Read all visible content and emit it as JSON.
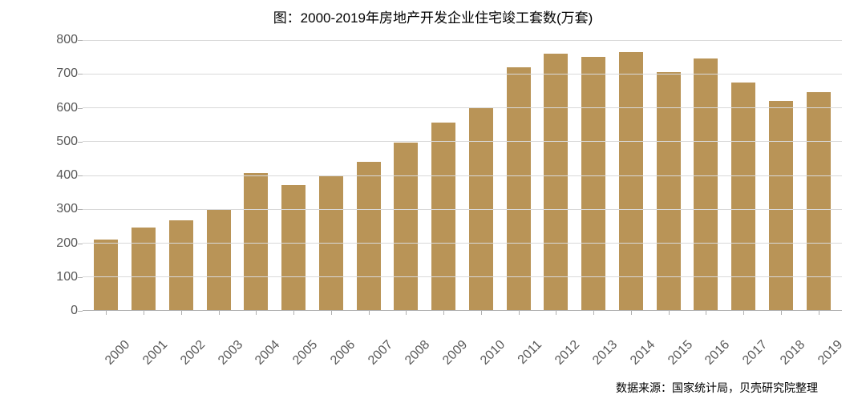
{
  "chart": {
    "type": "bar",
    "title": "图：2000-2019年房地产开发企业住宅竣工套数(万套)",
    "title_fontsize": 17,
    "title_color": "#000000",
    "background_color": "#ffffff",
    "bar_color": "#b99457",
    "grid_color": "#d9d9d9",
    "axis_color": "#b0b0b0",
    "tick_color": "#595959",
    "tick_fontsize": 16,
    "bar_width_ratio": 0.64,
    "ylim": [
      0,
      800
    ],
    "ytick_step": 100,
    "yticks": [
      "0",
      "100",
      "200",
      "300",
      "400",
      "500",
      "600",
      "700",
      "800"
    ],
    "categories": [
      "2000",
      "2001",
      "2002",
      "2003",
      "2004",
      "2005",
      "2006",
      "2007",
      "2008",
      "2009",
      "2010",
      "2011",
      "2012",
      "2013",
      "2014",
      "2015",
      "2016",
      "2017",
      "2018",
      "2019"
    ],
    "values": [
      210,
      245,
      265,
      300,
      405,
      370,
      400,
      440,
      495,
      555,
      600,
      720,
      760,
      750,
      765,
      705,
      745,
      675,
      620,
      645
    ],
    "xlabel_rotation_deg": -45
  },
  "source": {
    "text": "数据来源：国家统计局，贝壳研究院整理",
    "fontsize": 14,
    "color": "#000000"
  }
}
